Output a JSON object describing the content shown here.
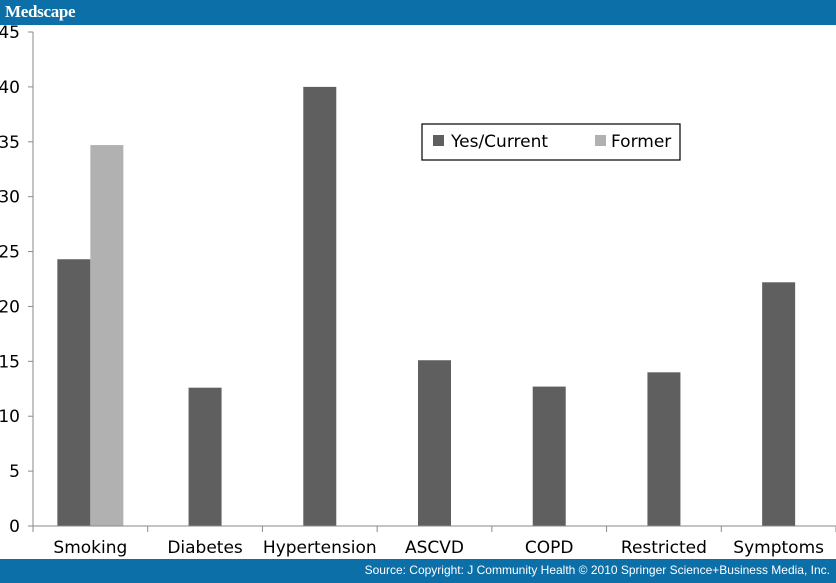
{
  "header": {
    "brand": "Medscape"
  },
  "footer": {
    "source": "Source: Copyright: J Community Health © 2010 Springer Science+Business Media, Inc."
  },
  "colors": {
    "bar_blue": "#0d6fa8",
    "yes_current": "#5f5f5f",
    "former": "#b1b1b1"
  },
  "chart_data": {
    "type": "bar",
    "categories": [
      "Smoking",
      "Diabetes",
      "Hypertension",
      "ASCVD",
      "COPD",
      "Restricted",
      "Symptoms"
    ],
    "series": [
      {
        "name": "Yes/Current",
        "values": [
          24.3,
          12.6,
          40.0,
          15.1,
          12.7,
          14.0,
          22.2
        ]
      },
      {
        "name": "Former",
        "values": [
          34.7,
          null,
          null,
          null,
          null,
          null,
          null
        ]
      }
    ],
    "yticks": [
      0,
      5,
      10,
      15,
      20,
      25,
      30,
      35,
      40,
      45
    ],
    "ylim": [
      0,
      45
    ],
    "legend": "top-center",
    "grid": false
  }
}
